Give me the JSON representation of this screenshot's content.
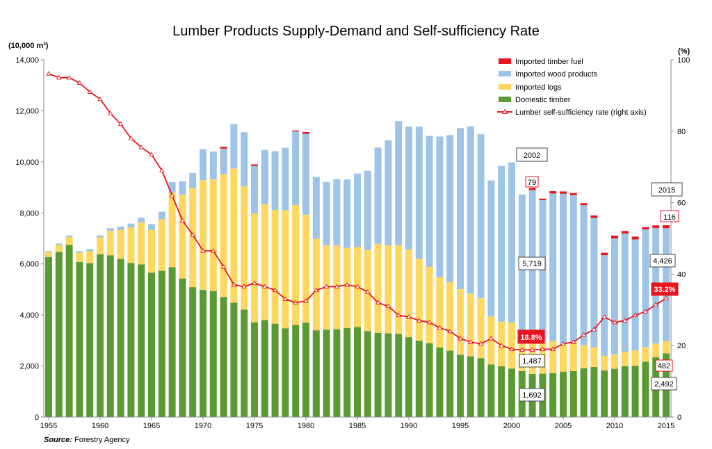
{
  "chart_data": {
    "type": "bar",
    "title": "Lumber Products Supply-Demand and Self-sufficiency Rate",
    "y_unit_left": "(10,000 m³)",
    "y_unit_right": "(%)",
    "source_label": "Source:",
    "source_text": "Forestry Agency",
    "ylim_left": [
      0,
      14000
    ],
    "ylim_right": [
      0,
      100
    ],
    "yticks_left": [
      "0",
      "2,000",
      "4,000",
      "6,000",
      "8,000",
      "10,000",
      "12,000",
      "14,000"
    ],
    "yticks_right": [
      "0",
      "20",
      "40",
      "60",
      "80",
      "100"
    ],
    "xticks": [
      "1955",
      "1960",
      "1965",
      "1970",
      "1975",
      "1980",
      "1985",
      "1990",
      "1995",
      "2000",
      "2005",
      "2010",
      "2015"
    ],
    "grid": false,
    "legend_position": "top-right",
    "legend": [
      "Imported timber fuel",
      "Imported wood products",
      "Imported logs",
      "Domestic timber",
      "Lumber self-sufficiency rate (right axis)"
    ],
    "years": [
      1955,
      1956,
      1957,
      1958,
      1959,
      1960,
      1961,
      1962,
      1963,
      1964,
      1965,
      1966,
      1967,
      1968,
      1969,
      1970,
      1971,
      1972,
      1973,
      1974,
      1975,
      1976,
      1977,
      1978,
      1979,
      1980,
      1981,
      1982,
      1983,
      1984,
      1985,
      1986,
      1987,
      1988,
      1989,
      1990,
      1991,
      1992,
      1993,
      1994,
      1995,
      1996,
      1997,
      1998,
      1999,
      2000,
      2001,
      2002,
      2003,
      2004,
      2005,
      2006,
      2007,
      2008,
      2009,
      2010,
      2011,
      2012,
      2013,
      2014,
      2015
    ],
    "series": [
      {
        "name": "Domestic timber",
        "color": "#5a9a32",
        "values": [
          6270,
          6470,
          6750,
          6080,
          6030,
          6380,
          6340,
          6200,
          6040,
          5980,
          5660,
          5730,
          5870,
          5430,
          5090,
          4980,
          4940,
          4700,
          4480,
          4210,
          3710,
          3800,
          3660,
          3480,
          3610,
          3700,
          3400,
          3420,
          3440,
          3490,
          3530,
          3370,
          3300,
          3280,
          3260,
          3130,
          2990,
          2890,
          2730,
          2600,
          2440,
          2380,
          2310,
          2060,
          1990,
          1900,
          1800,
          1692,
          1700,
          1720,
          1780,
          1800,
          1910,
          1960,
          1830,
          1890,
          1990,
          2010,
          2170,
          2340,
          2492
        ]
      },
      {
        "name": "Imported logs",
        "color": "#ffd75e",
        "values": [
          200,
          280,
          300,
          360,
          470,
          660,
          960,
          1140,
          1390,
          1640,
          1670,
          2020,
          2920,
          3290,
          3890,
          4300,
          4380,
          4820,
          5260,
          4830,
          4270,
          4540,
          4460,
          4620,
          4700,
          4230,
          3590,
          3310,
          3280,
          3140,
          3130,
          3180,
          3490,
          3450,
          3480,
          3430,
          3210,
          3000,
          2760,
          2690,
          2570,
          2460,
          2350,
          1880,
          1750,
          1800,
          1300,
          1487,
          1280,
          1260,
          1070,
          1160,
          900,
          770,
          570,
          570,
          560,
          600,
          570,
          540,
          482
        ]
      },
      {
        "name": "Imported wood products",
        "color": "#9dc3e6",
        "values": [
          30,
          50,
          60,
          60,
          80,
          80,
          100,
          120,
          150,
          190,
          230,
          300,
          420,
          520,
          580,
          1220,
          1080,
          1000,
          1740,
          2120,
          1860,
          2130,
          2300,
          2450,
          2880,
          3170,
          2420,
          2480,
          2600,
          2680,
          2880,
          3100,
          3770,
          4110,
          4860,
          4820,
          5180,
          5130,
          5500,
          5760,
          6310,
          6550,
          6420,
          5330,
          6100,
          6280,
          5620,
          5719,
          5520,
          5780,
          5900,
          5740,
          5490,
          5070,
          3940,
          4540,
          4640,
          4350,
          4610,
          4530,
          4426
        ]
      },
      {
        "name": "Imported timber fuel",
        "color": "#e8141e",
        "values": [
          0,
          0,
          0,
          0,
          0,
          0,
          0,
          0,
          0,
          0,
          0,
          0,
          0,
          0,
          0,
          0,
          0,
          70,
          0,
          0,
          60,
          0,
          0,
          0,
          40,
          70,
          0,
          0,
          0,
          0,
          0,
          0,
          0,
          0,
          0,
          0,
          0,
          0,
          0,
          0,
          0,
          0,
          0,
          0,
          0,
          0,
          0,
          79,
          60,
          90,
          90,
          80,
          80,
          100,
          100,
          110,
          100,
          110,
          90,
          100,
          116
        ]
      },
      {
        "name": "Lumber self-sufficiency rate (right axis)",
        "axis": "right",
        "color": "#e8141e",
        "values": [
          96.1,
          95.0,
          95.0,
          93.5,
          91.0,
          89.0,
          85.0,
          82.0,
          78.0,
          75.5,
          73.5,
          69.0,
          62.0,
          55.0,
          51.0,
          46.5,
          46.5,
          42.0,
          37.0,
          36.5,
          37.5,
          36.5,
          35.5,
          33.0,
          32.0,
          32.5,
          35.5,
          36.5,
          36.5,
          37.0,
          36.5,
          35.0,
          32.0,
          31.0,
          28.5,
          28.0,
          27.0,
          26.5,
          25.0,
          24.0,
          22.0,
          21.0,
          20.5,
          22.0,
          20.0,
          19.0,
          18.8,
          18.8,
          19.0,
          19.0,
          20.5,
          21.0,
          23.0,
          24.5,
          28.0,
          26.5,
          27.0,
          28.5,
          29.5,
          31.5,
          33.2
        ]
      }
    ],
    "annotations": {
      "year_2002": "2002",
      "year_2015": "2015",
      "fuel_2002": "79",
      "wood_2002": "5,719",
      "rate_2002": "18.8%",
      "logs_2002": "1,487",
      "domestic_2002": "1,692",
      "fuel_2015": "116",
      "wood_2015": "4,426",
      "rate_2015": "33.2%",
      "logs_2015": "482",
      "domestic_2015": "2,492"
    }
  }
}
